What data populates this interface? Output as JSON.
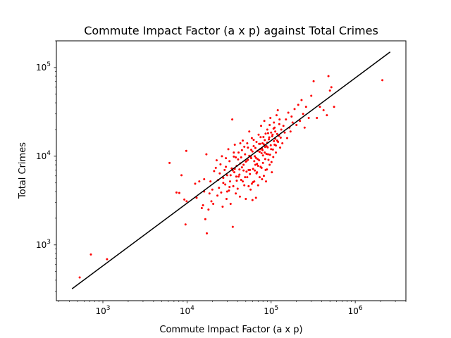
{
  "chart_data": {
    "type": "scatter",
    "title": "Commute Impact Factor (a x p) against Total Crimes",
    "xlabel": "Commute Impact Factor (a x p)",
    "ylabel": "Total Crimes",
    "xscale": "log",
    "yscale": "log",
    "xlim": [
      280,
      4000000
    ],
    "ylim": [
      235,
      200000
    ],
    "grid": false,
    "legend": "none",
    "colors": {
      "points": "#ff0000",
      "fit_line": "#000000"
    },
    "x_ticks": [
      {
        "base": "10",
        "exp": "3",
        "value": 1000
      },
      {
        "base": "10",
        "exp": "4",
        "value": 10000
      },
      {
        "base": "10",
        "exp": "5",
        "value": 100000
      },
      {
        "base": "10",
        "exp": "6",
        "value": 1000000
      }
    ],
    "y_ticks": [
      {
        "base": "10",
        "exp": "3",
        "value": 1000
      },
      {
        "base": "10",
        "exp": "4",
        "value": 10000
      },
      {
        "base": "10",
        "exp": "5",
        "value": 100000
      }
    ],
    "fit_line": {
      "x": [
        430,
        2600000
      ],
      "y": [
        320,
        150000
      ]
    },
    "points": [
      [
        530,
        430
      ],
      [
        720,
        780
      ],
      [
        1120,
        690
      ],
      [
        6200,
        8400
      ],
      [
        7500,
        3900
      ],
      [
        8100,
        3850
      ],
      [
        8600,
        6100
      ],
      [
        9300,
        3250
      ],
      [
        9600,
        1700
      ],
      [
        9800,
        11500
      ],
      [
        9900,
        3100
      ],
      [
        12500,
        4900
      ],
      [
        13000,
        3400
      ],
      [
        14000,
        5200
      ],
      [
        15000,
        2600
      ],
      [
        15500,
        2800
      ],
      [
        16000,
        4000
      ],
      [
        16000,
        5500
      ],
      [
        16500,
        1950
      ],
      [
        17000,
        10500
      ],
      [
        17200,
        1350
      ],
      [
        18000,
        2500
      ],
      [
        18500,
        3800
      ],
      [
        19000,
        5200
      ],
      [
        19500,
        3100
      ],
      [
        20000,
        4200
      ],
      [
        20500,
        2900
      ],
      [
        21000,
        6800
      ],
      [
        22000,
        7400
      ],
      [
        22500,
        9000
      ],
      [
        23000,
        3600
      ],
      [
        23500,
        5400
      ],
      [
        24000,
        4400
      ],
      [
        24500,
        6400
      ],
      [
        25000,
        8100
      ],
      [
        25500,
        3900
      ],
      [
        26000,
        10000
      ],
      [
        26500,
        2700
      ],
      [
        27000,
        5700
      ],
      [
        28000,
        7000
      ],
      [
        28500,
        4800
      ],
      [
        29000,
        9500
      ],
      [
        29500,
        3300
      ],
      [
        30000,
        6100
      ],
      [
        31000,
        12000
      ],
      [
        31500,
        4100
      ],
      [
        32000,
        8800
      ],
      [
        32500,
        5200
      ],
      [
        33000,
        2900
      ],
      [
        34000,
        7300
      ],
      [
        34500,
        26000
      ],
      [
        35000,
        1600
      ],
      [
        35500,
        4600
      ],
      [
        36000,
        9900
      ],
      [
        36500,
        6600
      ],
      [
        37000,
        13500
      ],
      [
        38000,
        3800
      ],
      [
        38500,
        5900
      ],
      [
        39000,
        7800
      ],
      [
        40000,
        4300
      ],
      [
        40500,
        9200
      ],
      [
        41000,
        11000
      ],
      [
        42000,
        6200
      ],
      [
        42500,
        3500
      ],
      [
        43000,
        8300
      ],
      [
        44000,
        5400
      ],
      [
        45000,
        7500
      ],
      [
        46000,
        15000
      ],
      [
        47000,
        6900
      ],
      [
        48000,
        4700
      ],
      [
        49000,
        10500
      ],
      [
        50000,
        3300
      ],
      [
        51000,
        8800
      ],
      [
        52000,
        5800
      ],
      [
        53000,
        12500
      ],
      [
        54000,
        7000
      ],
      [
        55000,
        19000
      ],
      [
        56000,
        6300
      ],
      [
        57000,
        4200
      ],
      [
        58000,
        9500
      ],
      [
        59000,
        16000
      ],
      [
        60000,
        3200
      ],
      [
        61000,
        7200
      ],
      [
        62000,
        13000
      ],
      [
        63000,
        5200
      ],
      [
        64000,
        10000
      ],
      [
        65000,
        8000
      ],
      [
        66000,
        3400
      ],
      [
        67000,
        14500
      ],
      [
        68000,
        6600
      ],
      [
        69000,
        11500
      ],
      [
        70000,
        4700
      ],
      [
        71000,
        17500
      ],
      [
        72000,
        9000
      ],
      [
        73000,
        5800
      ],
      [
        74000,
        12000
      ],
      [
        75000,
        7600
      ],
      [
        76000,
        22000
      ],
      [
        77000,
        10800
      ],
      [
        78000,
        5500
      ],
      [
        79000,
        14000
      ],
      [
        80000,
        8400
      ],
      [
        81000,
        16500
      ],
      [
        82000,
        6000
      ],
      [
        83000,
        25000
      ],
      [
        84000,
        11000
      ],
      [
        85000,
        9300
      ],
      [
        86000,
        18000
      ],
      [
        87000,
        5200
      ],
      [
        88000,
        13000
      ],
      [
        89000,
        7100
      ],
      [
        90000,
        20000
      ],
      [
        92000,
        10500
      ],
      [
        94000,
        15500
      ],
      [
        96000,
        8000
      ],
      [
        98000,
        27000
      ],
      [
        100000,
        12000
      ],
      [
        102000,
        6600
      ],
      [
        104000,
        17500
      ],
      [
        106000,
        9800
      ],
      [
        108000,
        24000
      ],
      [
        110000,
        13500
      ],
      [
        112000,
        19000
      ],
      [
        114000,
        11000
      ],
      [
        116000,
        29000
      ],
      [
        118000,
        15000
      ],
      [
        120000,
        33000
      ],
      [
        124000,
        17000
      ],
      [
        128000,
        12500
      ],
      [
        132000,
        20000
      ],
      [
        136000,
        14000
      ],
      [
        140000,
        22000
      ],
      [
        145000,
        18500
      ],
      [
        150000,
        26000
      ],
      [
        155000,
        16000
      ],
      [
        160000,
        31000
      ],
      [
        165000,
        21000
      ],
      [
        170000,
        19000
      ],
      [
        175000,
        28000
      ],
      [
        180000,
        24000
      ],
      [
        190000,
        34000
      ],
      [
        200000,
        22500
      ],
      [
        210000,
        38000
      ],
      [
        220000,
        25000
      ],
      [
        230000,
        43000
      ],
      [
        240000,
        30000
      ],
      [
        250000,
        21000
      ],
      [
        260000,
        36000
      ],
      [
        280000,
        27000
      ],
      [
        300000,
        48000
      ],
      [
        320000,
        70000
      ],
      [
        350000,
        27000
      ],
      [
        380000,
        36000
      ],
      [
        420000,
        33000
      ],
      [
        460000,
        29000
      ],
      [
        480000,
        80000
      ],
      [
        500000,
        55000
      ],
      [
        520000,
        60000
      ],
      [
        560000,
        36000
      ],
      [
        2100000,
        72000
      ],
      [
        46000,
        5200
      ],
      [
        52000,
        14000
      ],
      [
        58000,
        11800
      ],
      [
        63000,
        8800
      ],
      [
        67000,
        6400
      ],
      [
        72000,
        13800
      ],
      [
        78000,
        12200
      ],
      [
        84000,
        15200
      ],
      [
        91000,
        12600
      ],
      [
        96000,
        22500
      ],
      [
        103000,
        16800
      ],
      [
        110000,
        21000
      ],
      [
        118000,
        17800
      ],
      [
        126000,
        26000
      ],
      [
        37000,
        7200
      ],
      [
        41000,
        5900
      ],
      [
        44000,
        9700
      ],
      [
        48000,
        12800
      ],
      [
        50000,
        8700
      ],
      [
        54000,
        4600
      ],
      [
        57000,
        9900
      ],
      [
        61000,
        5100
      ],
      [
        64000,
        6900
      ],
      [
        68000,
        8200
      ],
      [
        73000,
        11200
      ],
      [
        77000,
        7400
      ],
      [
        82000,
        13600
      ],
      [
        88000,
        10600
      ],
      [
        93000,
        9100
      ],
      [
        99000,
        13300
      ],
      [
        105000,
        11900
      ],
      [
        112000,
        15700
      ],
      [
        121000,
        14500
      ],
      [
        130000,
        16200
      ],
      [
        30000,
        4000
      ],
      [
        33000,
        6100
      ],
      [
        36000,
        11000
      ],
      [
        39000,
        5300
      ],
      [
        43000,
        14000
      ],
      [
        47000,
        8000
      ],
      [
        51000,
        6700
      ],
      [
        55000,
        10100
      ],
      [
        59000,
        4900
      ],
      [
        62000,
        15300
      ],
      [
        66000,
        9600
      ],
      [
        70000,
        7800
      ],
      [
        75000,
        16400
      ],
      [
        80000,
        10200
      ],
      [
        86000,
        7000
      ],
      [
        92000,
        18200
      ],
      [
        97000,
        10400
      ],
      [
        101000,
        8600
      ],
      [
        107000,
        20500
      ],
      [
        114000,
        13200
      ],
      [
        125000,
        23000
      ],
      [
        27000,
        5000
      ],
      [
        29000,
        7600
      ],
      [
        32000,
        4500
      ],
      [
        35000,
        6900
      ],
      [
        38000,
        9700
      ],
      [
        42000,
        7100
      ],
      [
        45000,
        11700
      ],
      [
        49000,
        5800
      ],
      [
        53000,
        9100
      ],
      [
        56000,
        7000
      ],
      [
        60000,
        11300
      ],
      [
        65000,
        12400
      ],
      [
        69000,
        9300
      ],
      [
        74000,
        13800
      ],
      [
        79000,
        11700
      ],
      [
        85000,
        12700
      ],
      [
        90000,
        14200
      ],
      [
        95000,
        16300
      ],
      [
        100000,
        18500
      ],
      [
        108000,
        14800
      ]
    ]
  }
}
